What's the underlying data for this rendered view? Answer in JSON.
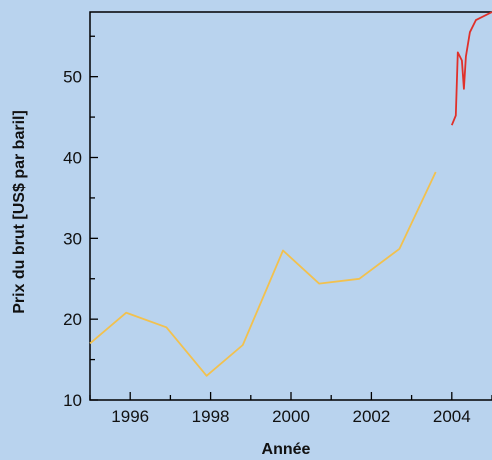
{
  "chart_data": {
    "type": "line",
    "title": "",
    "xlabel": "Année",
    "ylabel": "Prix du brut [US$ par baril]",
    "xlim": [
      1995.0,
      2005.0
    ],
    "ylim": [
      10,
      58
    ],
    "x_ticks": [
      1996,
      1998,
      2000,
      2002,
      2004
    ],
    "y_ticks": [
      10,
      20,
      30,
      40,
      50
    ],
    "grid": false,
    "legend": "none",
    "series": [
      {
        "color": "#f2c14e",
        "points": [
          [
            1995.0,
            17.0
          ],
          [
            1995.9,
            20.8
          ],
          [
            1996.9,
            19.0
          ],
          [
            1997.9,
            13.0
          ],
          [
            1998.8,
            16.8
          ],
          [
            1999.8,
            28.5
          ],
          [
            2000.7,
            24.4
          ],
          [
            2001.7,
            25.0
          ],
          [
            2002.7,
            28.7
          ],
          [
            2003.6,
            38.2
          ]
        ]
      },
      {
        "color": "#e0302a",
        "points": [
          [
            2004.0,
            44.0
          ],
          [
            2004.1,
            45.2
          ],
          [
            2004.15,
            53.0
          ],
          [
            2004.25,
            52.0
          ],
          [
            2004.3,
            48.5
          ],
          [
            2004.35,
            52.5
          ],
          [
            2004.45,
            55.5
          ],
          [
            2004.6,
            57.0
          ],
          [
            2005.0,
            58.0
          ]
        ]
      }
    ]
  }
}
